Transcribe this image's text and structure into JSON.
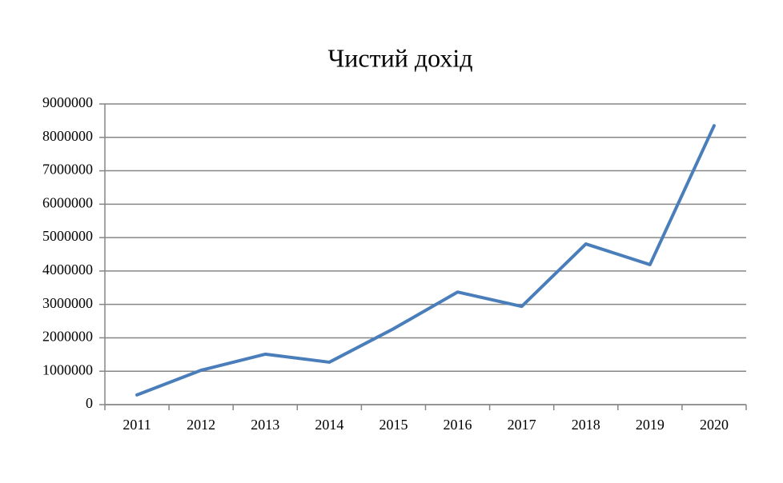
{
  "chart_data": {
    "type": "line",
    "title": "Чистий дохід",
    "categories": [
      "2011",
      "2012",
      "2013",
      "2014",
      "2015",
      "2016",
      "2017",
      "2018",
      "2019",
      "2020"
    ],
    "values": [
      290000,
      1030000,
      1510000,
      1270000,
      2270000,
      3370000,
      2940000,
      4810000,
      4190000,
      8350000
    ],
    "color": "#4a7ebb",
    "ylim": [
      0,
      9000000
    ],
    "yticks": [
      0,
      1000000,
      2000000,
      3000000,
      4000000,
      5000000,
      6000000,
      7000000,
      8000000,
      9000000
    ],
    "grid": true
  }
}
